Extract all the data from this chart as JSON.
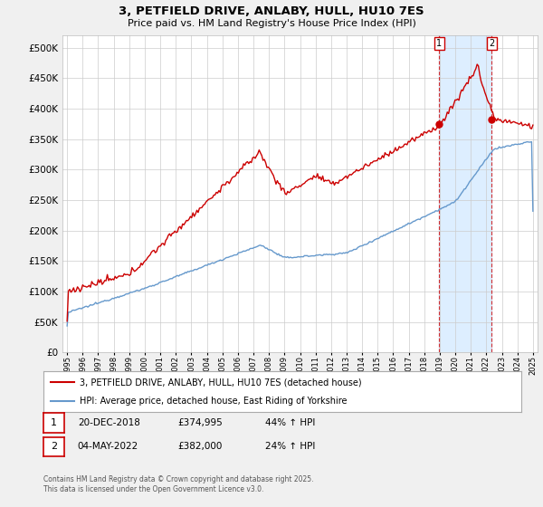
{
  "title": "3, PETFIELD DRIVE, ANLABY, HULL, HU10 7ES",
  "subtitle": "Price paid vs. HM Land Registry's House Price Index (HPI)",
  "legend_line1": "3, PETFIELD DRIVE, ANLABY, HULL, HU10 7ES (detached house)",
  "legend_line2": "HPI: Average price, detached house, East Riding of Yorkshire",
  "annotation1_date": "20-DEC-2018",
  "annotation1_price": "£374,995",
  "annotation1_hpi": "44% ↑ HPI",
  "annotation2_date": "04-MAY-2022",
  "annotation2_price": "£382,000",
  "annotation2_hpi": "24% ↑ HPI",
  "footer": "Contains HM Land Registry data © Crown copyright and database right 2025.\nThis data is licensed under the Open Government Licence v3.0.",
  "red_color": "#cc0000",
  "blue_color": "#6699cc",
  "shade_color": "#ddeeff",
  "ylim": [
    0,
    520000
  ],
  "yticks": [
    0,
    50000,
    100000,
    150000,
    200000,
    250000,
    300000,
    350000,
    400000,
    450000,
    500000
  ],
  "year_start": 1995,
  "year_end": 2025,
  "background_color": "#f0f0f0",
  "plot_bg": "#ffffff",
  "grid_color": "#cccccc"
}
